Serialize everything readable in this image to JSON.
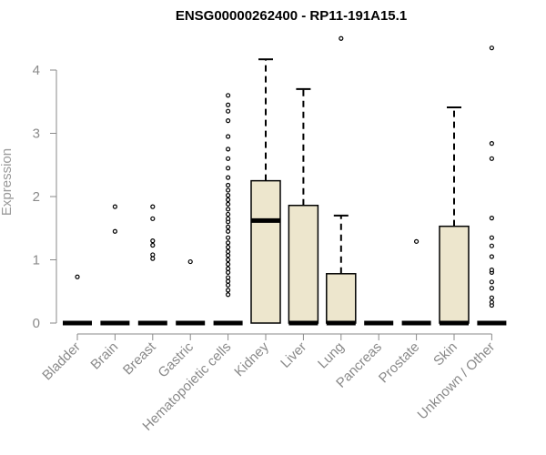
{
  "chart_data": {
    "type": "box",
    "title": "ENSG00000262400 - RP11-191A15.1",
    "ylabel": "Expression",
    "xlabel": "",
    "ylim": [
      0,
      4.5
    ],
    "yticks": [
      0,
      1,
      2,
      3,
      4
    ],
    "grid": false,
    "box_color": "#ede6cd",
    "categories": [
      "Bladder",
      "Brain",
      "Breast",
      "Gastric",
      "Hematopoietic cells",
      "Kidney",
      "Liver",
      "Lung",
      "Pancreas",
      "Prostate",
      "Skin",
      "Unknown / Other"
    ],
    "boxes": [
      {
        "q1": 0,
        "median": 0,
        "q3": 0,
        "whisker_low": 0,
        "whisker_high": 0,
        "outliers": [
          0.73
        ]
      },
      {
        "q1": 0,
        "median": 0,
        "q3": 0,
        "whisker_low": 0,
        "whisker_high": 0,
        "outliers": [
          1.45,
          1.84
        ]
      },
      {
        "q1": 0,
        "median": 0,
        "q3": 0,
        "whisker_low": 0,
        "whisker_high": 0,
        "outliers": [
          1.02,
          1.08,
          1.23,
          1.3,
          1.65,
          1.84
        ]
      },
      {
        "q1": 0,
        "median": 0,
        "q3": 0,
        "whisker_low": 0,
        "whisker_high": 0,
        "outliers": [
          0.97
        ]
      },
      {
        "q1": 0,
        "median": 0,
        "q3": 0,
        "whisker_low": 0,
        "whisker_high": 0,
        "outliers": [
          0.45,
          0.52,
          0.6,
          0.66,
          0.72,
          0.8,
          0.86,
          0.93,
          1.0,
          1.07,
          1.13,
          1.2,
          1.27,
          1.35,
          1.45,
          1.52,
          1.6,
          1.65,
          1.72,
          1.8,
          1.88,
          1.95,
          2.02,
          2.1,
          2.18,
          2.3,
          2.45,
          2.6,
          2.75,
          2.95,
          3.2,
          3.35,
          3.45,
          3.6
        ]
      },
      {
        "q1": 0,
        "median": 1.62,
        "q3": 2.25,
        "whisker_low": 0,
        "whisker_high": 4.17,
        "outliers": []
      },
      {
        "q1": 0,
        "median": 0,
        "q3": 1.86,
        "whisker_low": 0,
        "whisker_high": 3.7,
        "outliers": []
      },
      {
        "q1": 0,
        "median": 0,
        "q3": 0.78,
        "whisker_low": 0,
        "whisker_high": 1.7,
        "outliers": [
          4.5
        ]
      },
      {
        "q1": 0,
        "median": 0,
        "q3": 0,
        "whisker_low": 0,
        "whisker_high": 0,
        "outliers": []
      },
      {
        "q1": 0,
        "median": 0,
        "q3": 0,
        "whisker_low": 0,
        "whisker_high": 0,
        "outliers": [
          1.29
        ]
      },
      {
        "q1": 0,
        "median": 0,
        "q3": 1.53,
        "whisker_low": 0,
        "whisker_high": 3.41,
        "outliers": []
      },
      {
        "q1": 0,
        "median": 0,
        "q3": 0,
        "whisker_low": 0,
        "whisker_high": 0,
        "outliers": [
          0.28,
          0.33,
          0.4,
          0.55,
          0.65,
          0.8,
          0.84,
          1.05,
          1.22,
          1.35,
          1.66,
          2.6,
          2.84,
          4.35
        ]
      }
    ]
  }
}
